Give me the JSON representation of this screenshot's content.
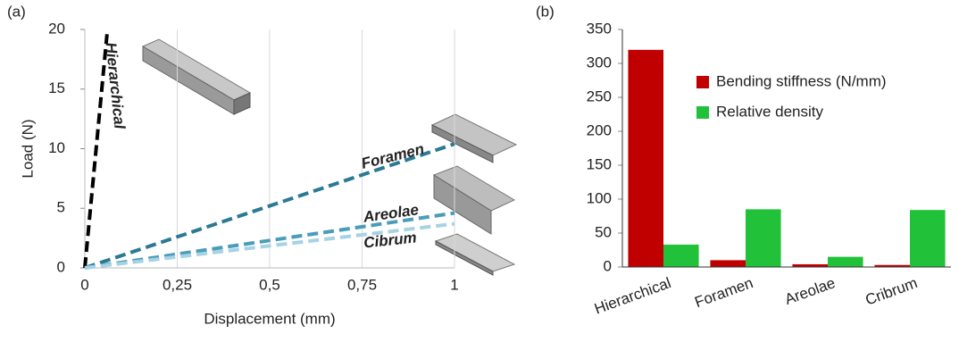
{
  "chart_data": [
    {
      "type": "line",
      "label": "(a)",
      "xlabel": "Displacement (mm)",
      "ylabel": "Load (N)",
      "xlim": [
        0,
        1
      ],
      "xticks": [
        0,
        {
          "value": 0.25,
          "label": "0,25"
        },
        {
          "value": 0.5,
          "label": "0,5"
        },
        {
          "value": 0.75,
          "label": "0,75"
        },
        1
      ],
      "ylim": [
        0,
        20
      ],
      "yticks": [
        0,
        5,
        10,
        15,
        20
      ],
      "grid": "x",
      "series": [
        {
          "name": "Hierarchical",
          "color": "#000000",
          "x": [
            0,
            0.06
          ],
          "values": [
            0,
            19.6
          ]
        },
        {
          "name": "Foramen",
          "color": "#2b7a93",
          "x": [
            0,
            1
          ],
          "values": [
            0,
            10.4
          ]
        },
        {
          "name": "Areolae",
          "color": "#4a9db9",
          "x": [
            0,
            1
          ],
          "values": [
            0,
            4.6
          ]
        },
        {
          "name": "Cibrum",
          "color": "#a6d3e3",
          "x": [
            0,
            1
          ],
          "values": [
            0,
            3.7
          ]
        }
      ]
    },
    {
      "type": "bar",
      "label": "(b)",
      "categories": [
        "Hierarchical",
        "Foramen",
        "Areolae",
        "Cribrum"
      ],
      "ylim": [
        0,
        350
      ],
      "yticks": [
        0,
        50,
        100,
        150,
        200,
        250,
        300,
        350
      ],
      "legend": "upper right",
      "series": [
        {
          "name": "Bending stiffness (N/mm)",
          "color": "#c00000",
          "values": [
            320,
            10,
            4,
            3
          ]
        },
        {
          "name": "Relative density",
          "color": "#22c13a",
          "values": [
            33,
            85,
            15,
            84
          ]
        }
      ]
    }
  ]
}
